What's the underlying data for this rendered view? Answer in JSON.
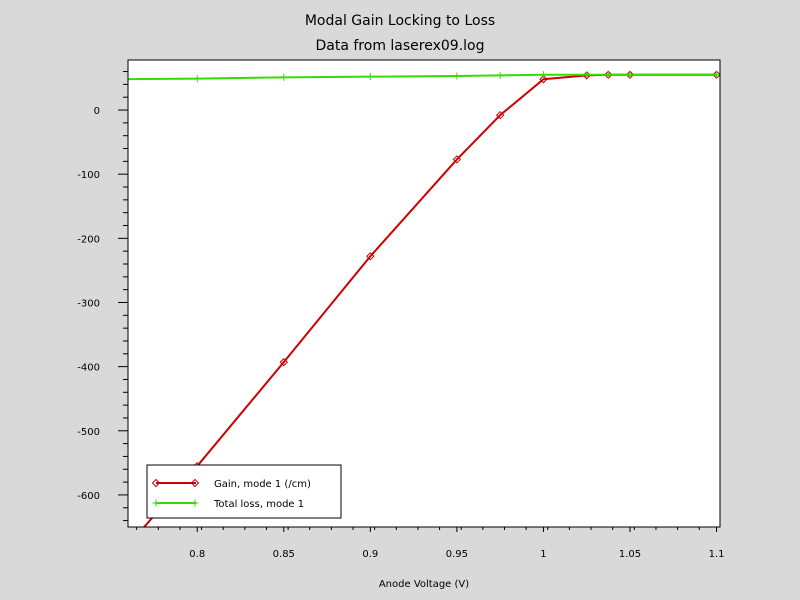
{
  "chart_data": {
    "type": "line",
    "title": "Modal Gain Locking to Loss",
    "subtitle": "Data from laserex09.log",
    "xlabel": "Anode Voltage (V)",
    "ylabel": "",
    "xlim": [
      0.76,
      1.102
    ],
    "ylim": [
      -650,
      78
    ],
    "x_ticks": [
      0.8,
      0.85,
      0.9,
      0.95,
      1,
      1.05,
      1.1
    ],
    "x_tick_labels": [
      "0.8",
      "0.85",
      "0.9",
      "0.95",
      "1",
      "1.05",
      "1.1"
    ],
    "y_ticks": [
      0,
      -100,
      -200,
      -300,
      -400,
      -500,
      -600
    ],
    "y_tick_labels": [
      "0",
      "-100",
      "-200",
      "-300",
      "-400",
      "-500",
      "-600"
    ],
    "grid": false,
    "legend_position": "bottom-left",
    "series": [
      {
        "name": "Gain, mode 1 (/cm)",
        "color": "#cc0000",
        "marker": "diamond",
        "x": [
          0.75,
          0.8,
          0.85,
          0.9,
          0.95,
          0.975,
          1.0,
          1.025,
          1.0375,
          1.05,
          1.1
        ],
        "y": [
          -710,
          -555,
          -393,
          -228,
          -77,
          -8,
          48,
          54,
          55,
          55,
          55
        ]
      },
      {
        "name": "Total loss, mode 1",
        "color": "#33dd00",
        "marker": "plus",
        "x": [
          0.75,
          0.8,
          0.85,
          0.9,
          0.95,
          0.975,
          1.0,
          1.025,
          1.0375,
          1.05,
          1.1
        ],
        "y": [
          48,
          49,
          51,
          52,
          53,
          54,
          55,
          55,
          55,
          55,
          55
        ]
      }
    ]
  }
}
